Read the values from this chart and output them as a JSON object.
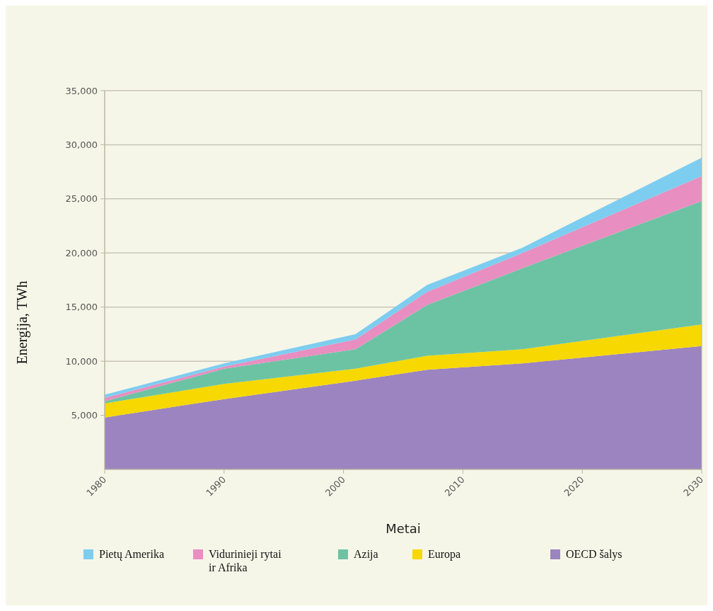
{
  "chart_data": {
    "type": "area",
    "stacked": true,
    "xlabel": "Metai",
    "ylabel": "Energija, TWh",
    "x": [
      1980,
      1990,
      2001,
      2007,
      2015,
      2030
    ],
    "xlim": [
      1980,
      2030
    ],
    "xticks": [
      1980,
      1990,
      2000,
      2010,
      2020,
      2030
    ],
    "ylim": [
      0,
      35000
    ],
    "yticks": [
      {
        "value": 5000,
        "label": "5,000"
      },
      {
        "value": 10000,
        "label": "10,000"
      },
      {
        "value": 15000,
        "label": "15,000"
      },
      {
        "value": 20000,
        "label": "20,000"
      },
      {
        "value": 25000,
        "label": "25,000"
      },
      {
        "value": 30000,
        "label": "30,000"
      },
      {
        "value": 35000,
        "label": "35,000"
      }
    ],
    "grid": "y",
    "legend": "bottom",
    "series": [
      {
        "name": "OECD šalys",
        "color": "#9b84bf",
        "values": [
          4800,
          6500,
          8200,
          9200,
          9800,
          11400
        ]
      },
      {
        "name": "Europa",
        "color": "#f7d800",
        "values": [
          1300,
          1400,
          1100,
          1300,
          1300,
          2000
        ]
      },
      {
        "name": "Azija",
        "color": "#6cc3a4",
        "values": [
          200,
          1400,
          1800,
          4700,
          7500,
          11400
        ]
      },
      {
        "name": "Vidurinieji rytai ir Afrika",
        "color": "#e88ec0",
        "values": [
          300,
          200,
          900,
          1200,
          1400,
          2300
        ]
      },
      {
        "name": "Pietų Amerika",
        "color": "#7dcdf0",
        "values": [
          300,
          300,
          500,
          650,
          500,
          1700
        ]
      }
    ]
  }
}
